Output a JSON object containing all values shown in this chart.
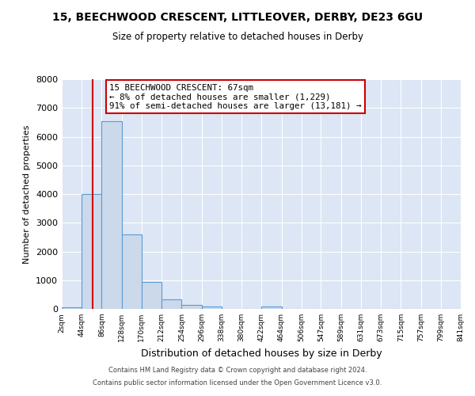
{
  "title": "15, BEECHWOOD CRESCENT, LITTLEOVER, DERBY, DE23 6GU",
  "subtitle": "Size of property relative to detached houses in Derby",
  "xlabel": "Distribution of detached houses by size in Derby",
  "ylabel": "Number of detached properties",
  "bin_edges": [
    2,
    44,
    86,
    128,
    170,
    212,
    254,
    296,
    338,
    380,
    422,
    464,
    506,
    547,
    589,
    631,
    673,
    715,
    757,
    799,
    841
  ],
  "bar_heights": [
    60,
    4000,
    6550,
    2600,
    950,
    320,
    130,
    80,
    0,
    0,
    80,
    0,
    0,
    0,
    0,
    0,
    0,
    0,
    0,
    0
  ],
  "bar_color": "#ccd9ea",
  "bar_edge_color": "#5b9bd5",
  "ylim": [
    0,
    8000
  ],
  "yticks": [
    0,
    1000,
    2000,
    3000,
    4000,
    5000,
    6000,
    7000,
    8000
  ],
  "property_line_x": 67,
  "property_line_color": "#cc0000",
  "annotation_title": "15 BEECHWOOD CRESCENT: 67sqm",
  "annotation_line1": "← 8% of detached houses are smaller (1,229)",
  "annotation_line2": "91% of semi-detached houses are larger (13,181) →",
  "annotation_box_color": "#ffffff",
  "annotation_box_edge_color": "#cc0000",
  "footer1": "Contains HM Land Registry data © Crown copyright and database right 2024.",
  "footer2": "Contains public sector information licensed under the Open Government Licence v3.0.",
  "background_color": "#dce6f5",
  "plot_bg_color": "#dce6f5",
  "grid_color": "#ffffff",
  "tick_labels": [
    "2sqm",
    "44sqm",
    "86sqm",
    "128sqm",
    "170sqm",
    "212sqm",
    "254sqm",
    "296sqm",
    "338sqm",
    "380sqm",
    "422sqm",
    "464sqm",
    "506sqm",
    "547sqm",
    "589sqm",
    "631sqm",
    "673sqm",
    "715sqm",
    "757sqm",
    "799sqm",
    "841sqm"
  ]
}
